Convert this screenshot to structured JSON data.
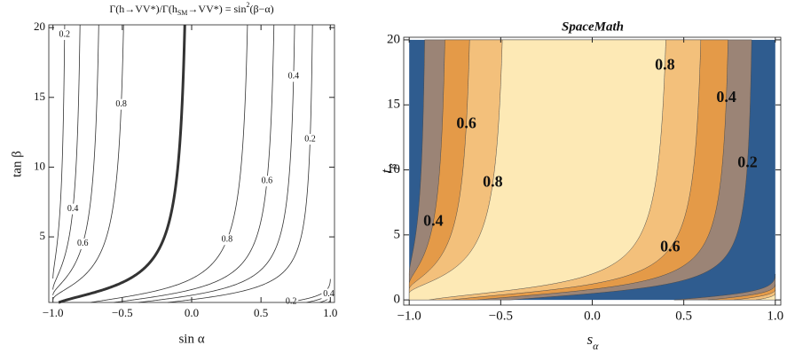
{
  "chart_data": [
    {
      "type": "contour",
      "title": [
        "Γ(h→VV*)/Γ(h",
        "SM",
        "→VV*) = sin",
        "2",
        "(β−α)"
      ],
      "xlabel": "sin α",
      "ylabel": "tan β",
      "xlim": [
        -1.03,
        1.03
      ],
      "ylim": [
        0.3,
        20.2
      ],
      "xticks": [
        {
          "value": -1,
          "label": "−1.0"
        },
        {
          "value": -0.5,
          "label": "−0.5"
        },
        {
          "value": 0,
          "label": "0.0"
        },
        {
          "value": 0.5,
          "label": "0.5"
        },
        {
          "value": 1,
          "label": "1.0"
        }
      ],
      "yticks": [
        5,
        10,
        15,
        20
      ],
      "levels": [
        0.2,
        0.4,
        0.6,
        0.8
      ],
      "highlight_level": 1,
      "line_color": "#333333",
      "contour_labels": [
        {
          "level": 0.2,
          "y": 19.5,
          "branch": "left"
        },
        {
          "level": 0.8,
          "y": 14.5,
          "branch": "left"
        },
        {
          "level": 0.4,
          "y": 7,
          "branch": "left"
        },
        {
          "level": 0.6,
          "y": 4.5,
          "branch": "left"
        },
        {
          "level": 0.8,
          "y": 4.8,
          "branch": "right"
        },
        {
          "level": 0.6,
          "y": 9,
          "branch": "right"
        },
        {
          "level": 0.4,
          "y": 16.5,
          "branch": "right"
        },
        {
          "level": 0.2,
          "y": 12,
          "branch": "right"
        },
        {
          "level": 0.2,
          "y": 0.35,
          "branch": "lower"
        },
        {
          "level": 0.4,
          "y": 0.9,
          "branch": "lower"
        }
      ]
    },
    {
      "type": "filled-contour",
      "title": "SpaceMath",
      "xlabel": [
        "s",
        "α"
      ],
      "ylabel": [
        "t",
        "β"
      ],
      "xlim": [
        -1.03,
        1.03
      ],
      "ylim": [
        -0.4,
        20.2
      ],
      "xticks": [
        {
          "value": -1,
          "label": "−1.0"
        },
        {
          "value": -0.5,
          "label": "−0.5"
        },
        {
          "value": 0,
          "label": "0.0"
        },
        {
          "value": 0.5,
          "label": "0.5"
        },
        {
          "value": 1,
          "label": "1.0"
        }
      ],
      "yticks": [
        0,
        5,
        10,
        15,
        20
      ],
      "levels": [
        0.2,
        0.4,
        0.6,
        0.8
      ],
      "colors": [
        "#2f5c8f",
        "#9b8476",
        "#e49a48",
        "#f3c07b",
        "#fde9b5"
      ],
      "contour_labels": [
        {
          "level": 0.8,
          "y": 18,
          "branch": "right"
        },
        {
          "level": 0.4,
          "y": 15.5,
          "branch": "right"
        },
        {
          "level": 0.2,
          "y": 10.5,
          "branch": "right"
        },
        {
          "level": 0.6,
          "y": 13.5,
          "branch": "left"
        },
        {
          "level": 0.8,
          "y": 9,
          "branch": "left"
        },
        {
          "level": 0.4,
          "y": 6,
          "branch": "left"
        },
        {
          "level": 0.6,
          "y": 4,
          "branch": "right"
        }
      ]
    }
  ]
}
